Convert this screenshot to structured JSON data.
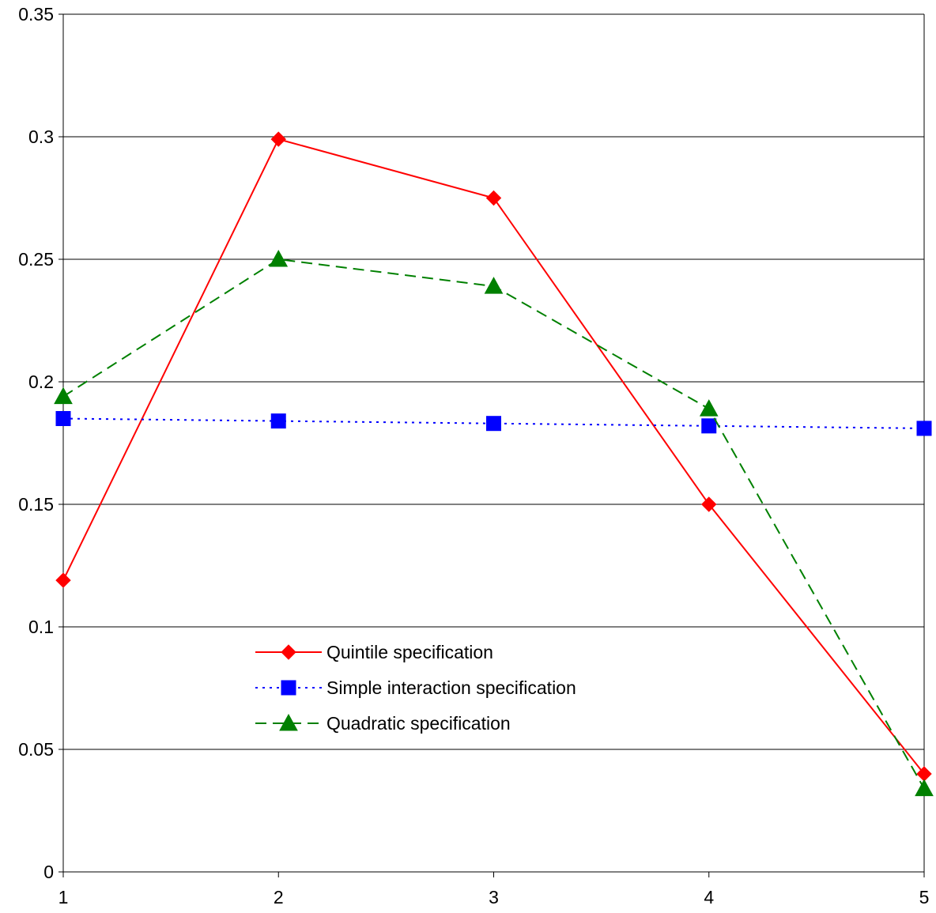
{
  "chart_data": {
    "type": "line",
    "title": "",
    "xlabel": "",
    "ylabel": "",
    "x": [
      1,
      2,
      3,
      4,
      5
    ],
    "x_tick_labels": [
      "1",
      "2",
      "3",
      "4",
      "5"
    ],
    "ylim": [
      0,
      0.35
    ],
    "y_ticks": [
      0,
      0.05,
      0.1,
      0.15,
      0.2,
      0.25,
      0.3,
      0.35
    ],
    "y_tick_labels": [
      "0",
      "0.05",
      "0.1",
      "0.15",
      "0.2",
      "0.25",
      "0.3",
      "0.35"
    ],
    "grid": "horizontal",
    "legend_position": "inside-center-left",
    "series": [
      {
        "name": "Quintile specification",
        "values": [
          0.119,
          0.299,
          0.275,
          0.15,
          0.04
        ],
        "color": "#ff0000",
        "line_style": "solid",
        "marker": "diamond"
      },
      {
        "name": "Simple interaction specification",
        "values": [
          0.185,
          0.184,
          0.183,
          0.182,
          0.181
        ],
        "color": "#0000ff",
        "line_style": "dotted",
        "marker": "square"
      },
      {
        "name": "Quadratic specification",
        "values": [
          0.194,
          0.25,
          0.239,
          0.189,
          0.034
        ],
        "color": "#008000",
        "line_style": "dashed",
        "marker": "triangle"
      }
    ]
  }
}
